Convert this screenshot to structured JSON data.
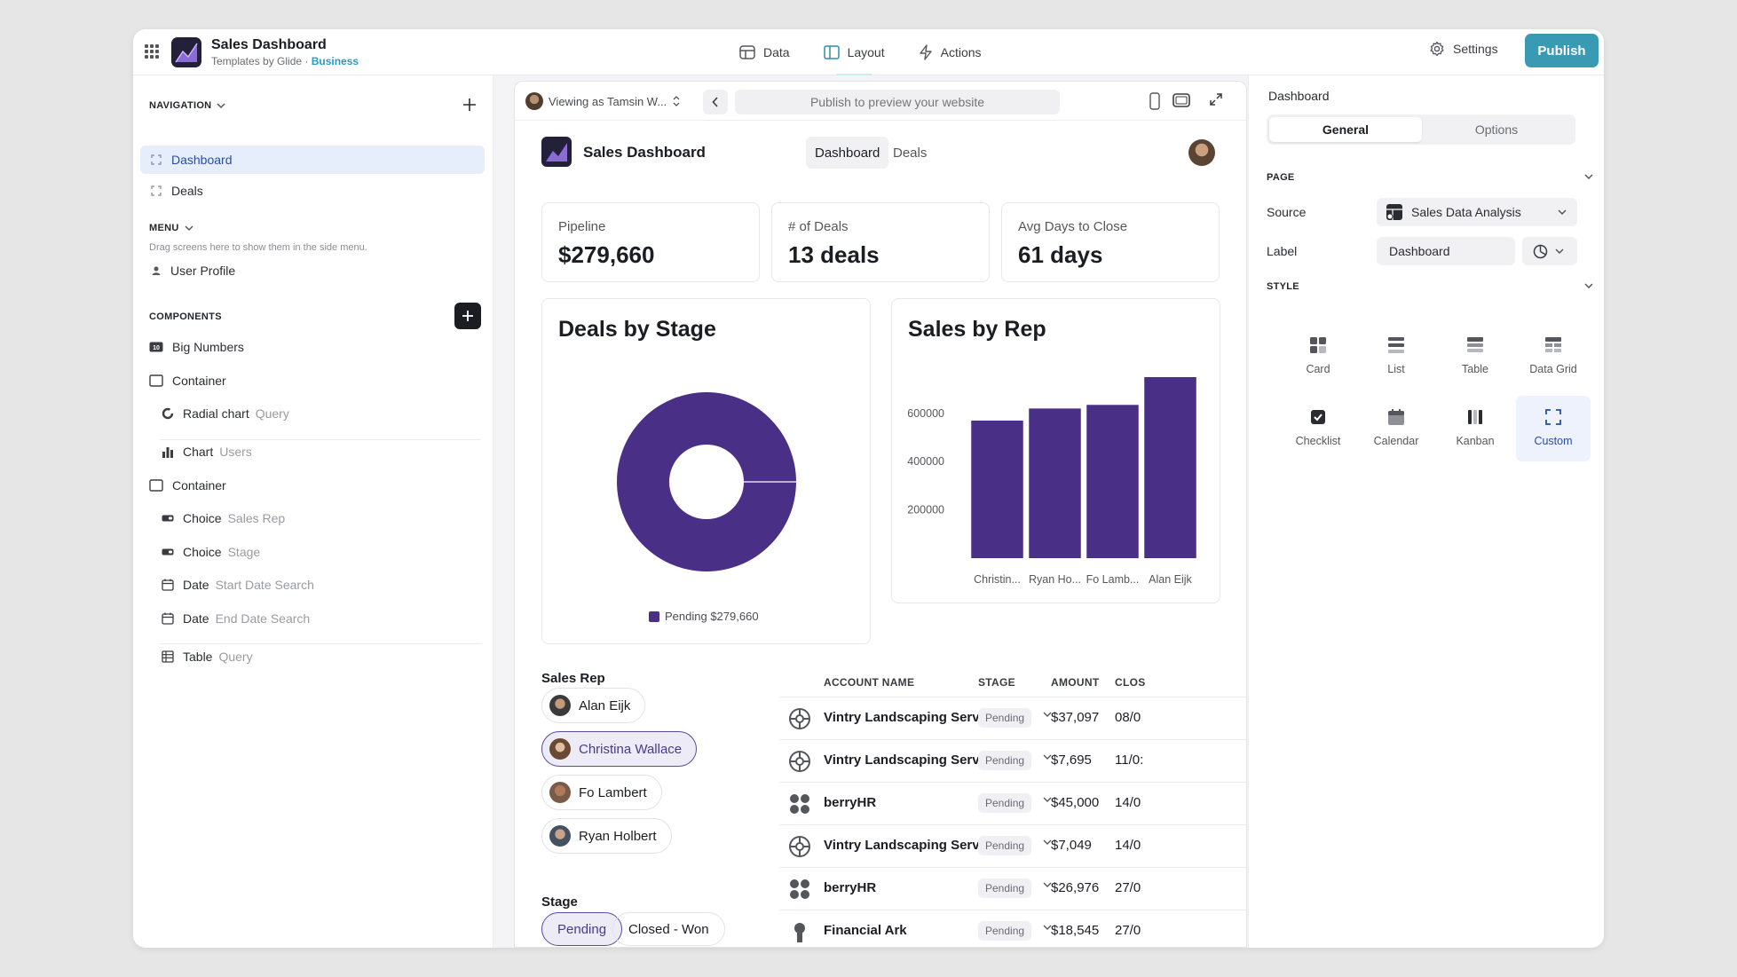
{
  "app": {
    "title": "Sales Dashboard",
    "subtitle": "Templates by Glide · ",
    "plan": "Business"
  },
  "topnav": {
    "data": "Data",
    "layout": "Layout",
    "actions": "Actions",
    "settings": "Settings",
    "publish": "Publish"
  },
  "left": {
    "navigation_label": "NAVIGATION",
    "nav_items": [
      "Dashboard",
      "Deals"
    ],
    "menu_label": "MENU",
    "menu_hint": "Drag screens here to show them in the side menu.",
    "menu_item": "User Profile",
    "components_label": "COMPONENTS",
    "components": [
      {
        "name": "Big Numbers",
        "sub": ""
      },
      {
        "name": "Container",
        "sub": ""
      },
      {
        "name": "Radial chart",
        "sub": "Query"
      },
      {
        "name": "Chart",
        "sub": "Users"
      },
      {
        "name": "Container",
        "sub": ""
      },
      {
        "name": "Choice",
        "sub": "Sales Rep"
      },
      {
        "name": "Choice",
        "sub": "Stage"
      },
      {
        "name": "Date",
        "sub": "Start Date Search"
      },
      {
        "name": "Date",
        "sub": "End Date Search"
      },
      {
        "name": "Table",
        "sub": "Query"
      }
    ]
  },
  "preview": {
    "viewing_as": "Viewing as Tamsin W...",
    "url_placeholder": "Publish to preview your website",
    "page_title": "Sales Dashboard",
    "tabs": [
      "Dashboard",
      "Deals"
    ],
    "stats": [
      {
        "label": "Pipeline",
        "value": "$279,660"
      },
      {
        "label": "# of Deals",
        "value": "13 deals"
      },
      {
        "label": "Avg Days to Close",
        "value": "61 days"
      }
    ],
    "sales_rep_label": "Sales Rep",
    "reps": [
      "Alan Eijk",
      "Christina Wallace",
      "Fo Lambert",
      "Ryan Holbert"
    ],
    "stage_label": "Stage",
    "stages": [
      "Pending",
      "Closed - Won"
    ],
    "table": {
      "headers": [
        "ACCOUNT NAME",
        "STAGE",
        "AMOUNT",
        "CLOS"
      ],
      "rows": [
        {
          "account": "Vintry Landscaping Services",
          "stage": "Pending",
          "amount": "$37,097",
          "close": "08/0"
        },
        {
          "account": "Vintry Landscaping Services",
          "stage": "Pending",
          "amount": "$7,695",
          "close": "11/0:"
        },
        {
          "account": "berryHR",
          "stage": "Pending",
          "amount": "$45,000",
          "close": "14/0"
        },
        {
          "account": "Vintry Landscaping Services",
          "stage": "Pending",
          "amount": "$7,049",
          "close": "14/0"
        },
        {
          "account": "berryHR",
          "stage": "Pending",
          "amount": "$26,976",
          "close": "27/0"
        },
        {
          "account": "Financial Ark",
          "stage": "Pending",
          "amount": "$18,545",
          "close": "27/0"
        }
      ]
    }
  },
  "chart_data": [
    {
      "type": "pie",
      "title": "Deals by Stage",
      "labels": [
        "Pending"
      ],
      "values": [
        279660
      ],
      "legend": [
        "Pending $279,660"
      ],
      "legend_position": "bottom",
      "colors": [
        "#4a2f87"
      ]
    },
    {
      "type": "bar",
      "title": "Sales by Rep",
      "categories": [
        "Christin...",
        "Ryan Ho...",
        "Fo Lamb...",
        "Alan Eijk"
      ],
      "values": [
        570000,
        620000,
        635000,
        750000
      ],
      "yticks": [
        "600000",
        "400000",
        "200000"
      ],
      "ylim": [
        0,
        750000
      ],
      "grid": false,
      "colors": [
        "#4a2f87"
      ]
    }
  ],
  "right": {
    "title": "Dashboard",
    "tabs": [
      "General",
      "Options"
    ],
    "page_label": "PAGE",
    "source_label": "Source",
    "source_value": "Sales Data Analysis",
    "label_label": "Label",
    "label_value": "Dashboard",
    "style_label": "STYLE",
    "styles": [
      "Card",
      "List",
      "Table",
      "Data Grid",
      "Checklist",
      "Calendar",
      "Kanban",
      "Custom"
    ]
  },
  "colors": {
    "accent": "#3a9ab3",
    "chart": "#4a2f87",
    "selection": "#264ea8"
  }
}
